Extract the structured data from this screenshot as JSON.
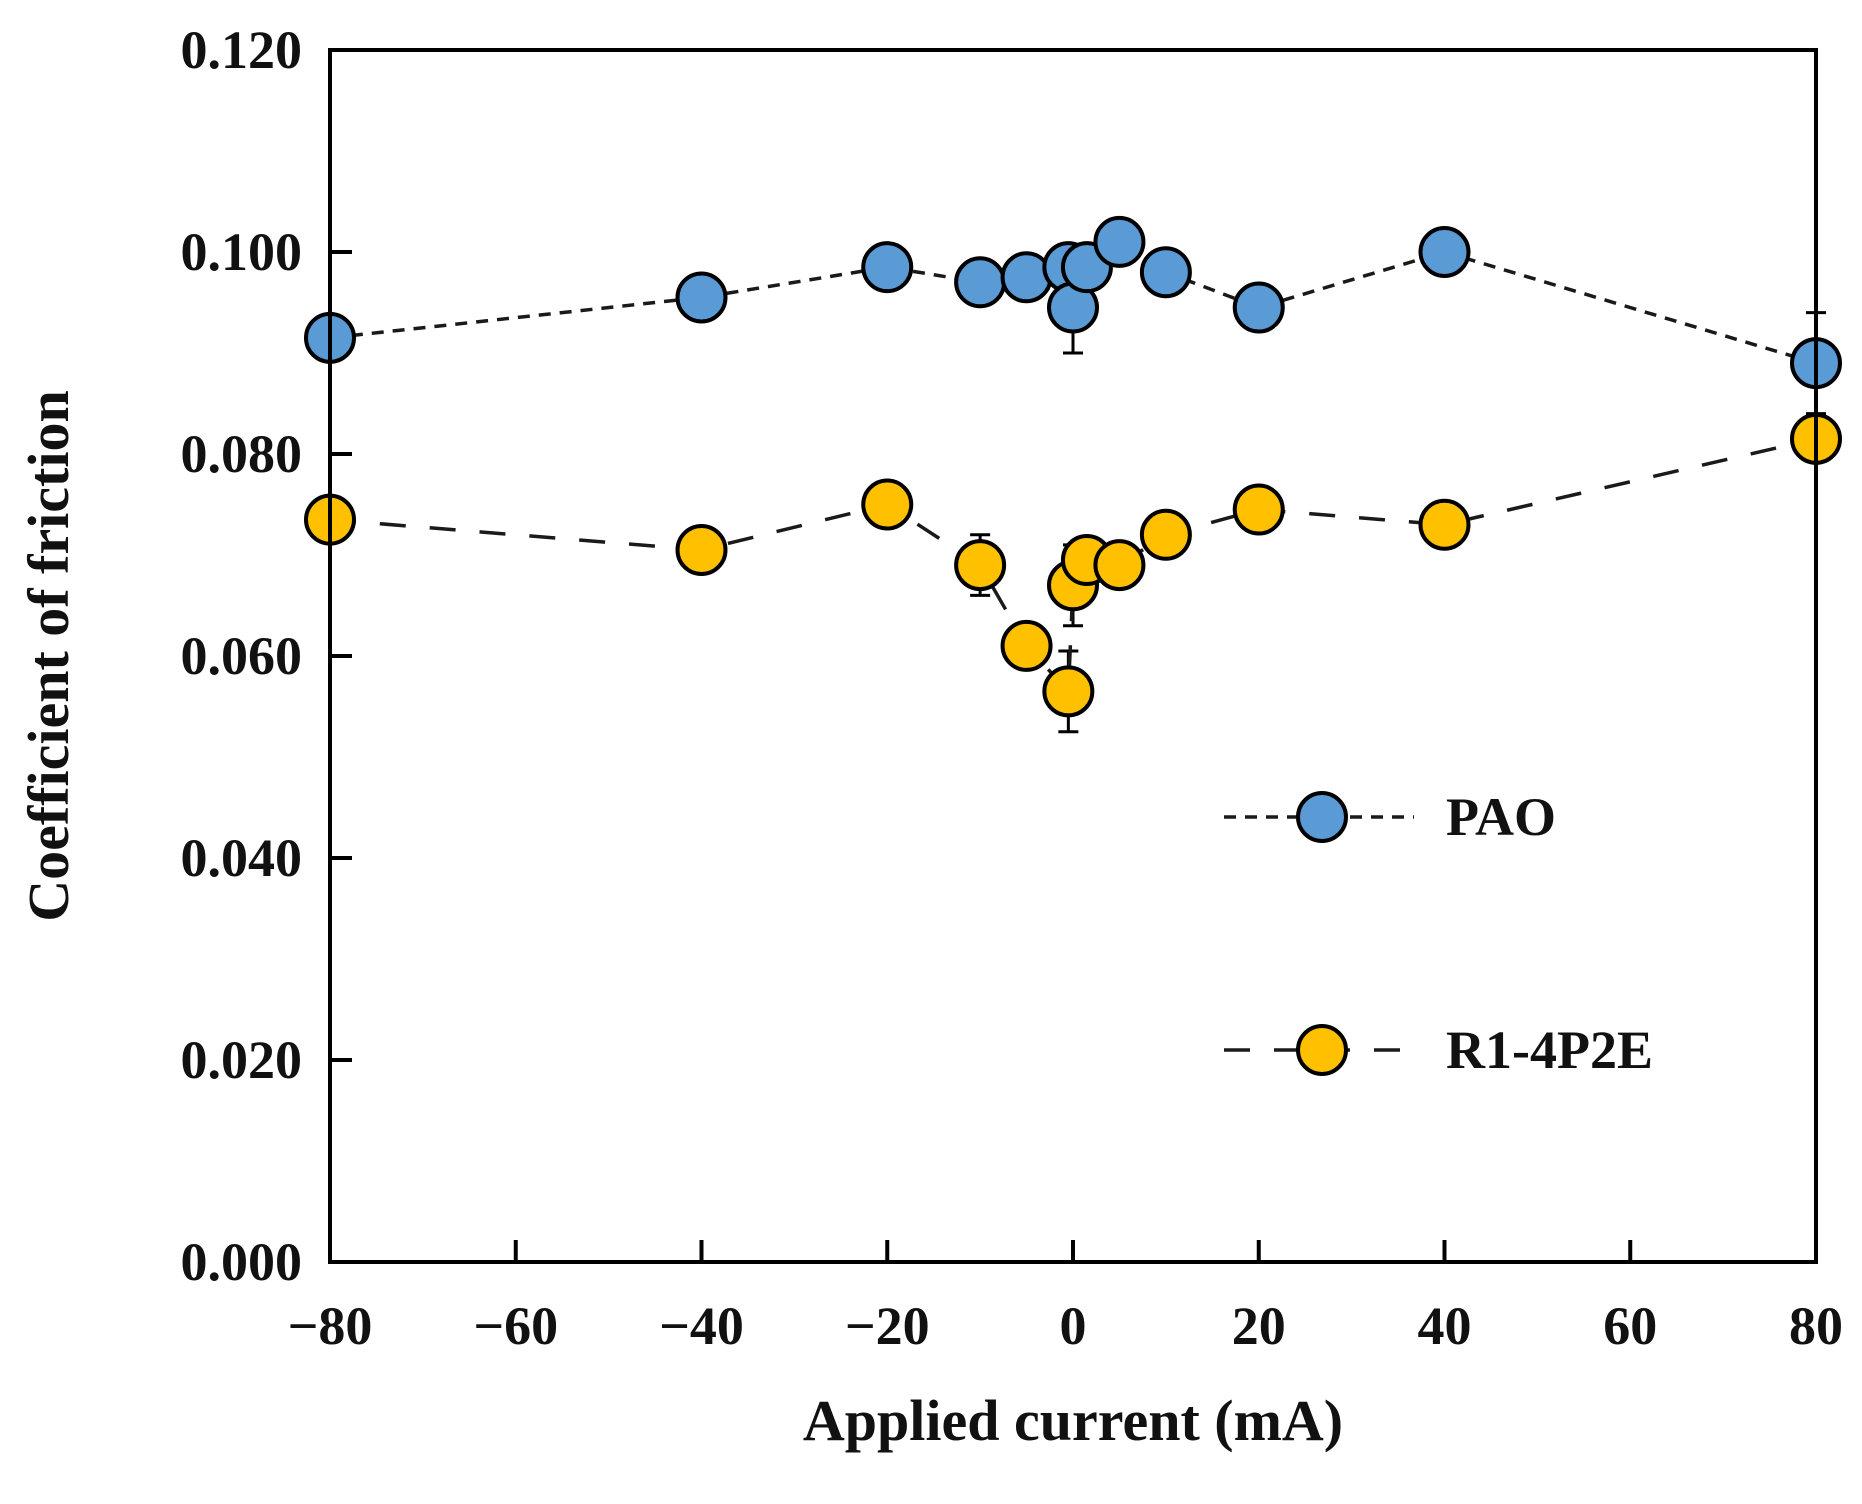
{
  "chart_data": {
    "type": "scatter",
    "title": "",
    "xlabel": "Applied current (mA)",
    "ylabel": "Coefficient of friction",
    "xlim": [
      -80,
      80
    ],
    "ylim": [
      0,
      0.12
    ],
    "xticks": [
      -80,
      -60,
      -40,
      -20,
      0,
      20,
      40,
      60,
      80
    ],
    "xtick_labels": [
      "−80",
      "−60",
      "−40",
      "−20",
      "0",
      "20",
      "40",
      "60",
      "80"
    ],
    "yticks": [
      0,
      0.02,
      0.04,
      0.06,
      0.08,
      0.1,
      0.12
    ],
    "ytick_labels": [
      "0.000",
      "0.020",
      "0.040",
      "0.060",
      "0.080",
      "0.100",
      "0.120"
    ],
    "grid": false,
    "legend_position": "middle-right",
    "series": [
      {
        "name": "PAO",
        "color": "#5b9bd5",
        "line_style": "short-dash",
        "points": [
          {
            "x": -80,
            "y": 0.0915,
            "err": 0.001
          },
          {
            "x": -40,
            "y": 0.0955,
            "err": 0.001
          },
          {
            "x": -20,
            "y": 0.0985,
            "err": 0.001
          },
          {
            "x": -10,
            "y": 0.097,
            "err": 0.001
          },
          {
            "x": -5,
            "y": 0.0975,
            "err": 0.001
          },
          {
            "x": -0.5,
            "y": 0.0985,
            "err": 0.001
          },
          {
            "x": 0,
            "y": 0.0945,
            "err": 0.0045
          },
          {
            "x": 1.5,
            "y": 0.0985,
            "err": 0.001
          },
          {
            "x": 5,
            "y": 0.101,
            "err": 0.001
          },
          {
            "x": 10,
            "y": 0.098,
            "err": 0.001
          },
          {
            "x": 20,
            "y": 0.0945,
            "err": 0.001
          },
          {
            "x": 40,
            "y": 0.1,
            "err": 0.001
          },
          {
            "x": 80,
            "y": 0.089,
            "err": 0.005
          }
        ]
      },
      {
        "name": "R1-4P2E",
        "color": "#ffc000",
        "line_style": "long-dash",
        "points": [
          {
            "x": -80,
            "y": 0.0735,
            "err": 0.001
          },
          {
            "x": -40,
            "y": 0.0705,
            "err": 0.001
          },
          {
            "x": -20,
            "y": 0.075,
            "err": 0.001
          },
          {
            "x": -10,
            "y": 0.069,
            "err": 0.003
          },
          {
            "x": -5,
            "y": 0.061,
            "err": 0.001
          },
          {
            "x": -0.5,
            "y": 0.0565,
            "err": 0.004
          },
          {
            "x": 0,
            "y": 0.067,
            "err": 0.004
          },
          {
            "x": 1.5,
            "y": 0.0695,
            "err": 0.001
          },
          {
            "x": 5,
            "y": 0.069,
            "err": 0.001
          },
          {
            "x": 10,
            "y": 0.072,
            "err": 0.001
          },
          {
            "x": 20,
            "y": 0.0745,
            "err": 0.001
          },
          {
            "x": 40,
            "y": 0.073,
            "err": 0.001
          },
          {
            "x": 80,
            "y": 0.0815,
            "err": 0.001
          }
        ]
      }
    ]
  }
}
